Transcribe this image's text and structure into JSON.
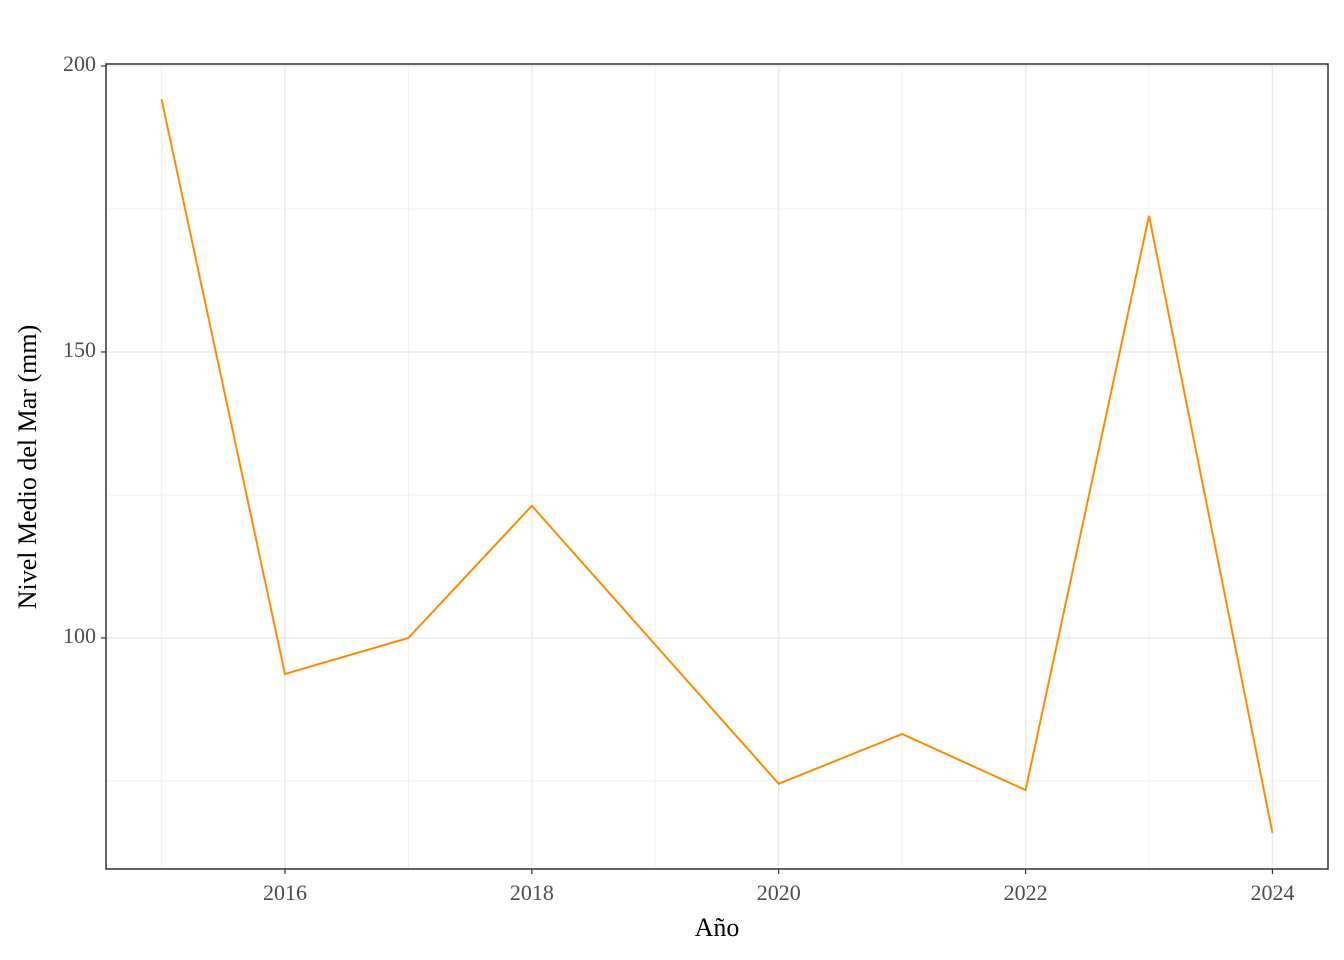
{
  "chart_data": {
    "type": "line",
    "x_label": "Año",
    "y_label": "Nivel Medio del Mar (mm)",
    "x": [
      2015,
      2016,
      2017,
      2018,
      2019,
      2020,
      2021,
      2022,
      2023,
      2024
    ],
    "series": [
      {
        "color": "#ff8c00",
        "values": [
          194.2,
          93.7,
          100,
          123.1,
          98.8,
          74.5,
          83.2,
          73.4,
          173.8,
          65.9
        ]
      }
    ],
    "xlim": [
      2014.55,
      2024.45
    ],
    "xticks": [
      2016,
      2018,
      2020,
      2022,
      2024
    ],
    "ylim": [
      59.6,
      200.35
    ],
    "yticks": [
      100,
      150,
      200
    ],
    "grid": true
  }
}
